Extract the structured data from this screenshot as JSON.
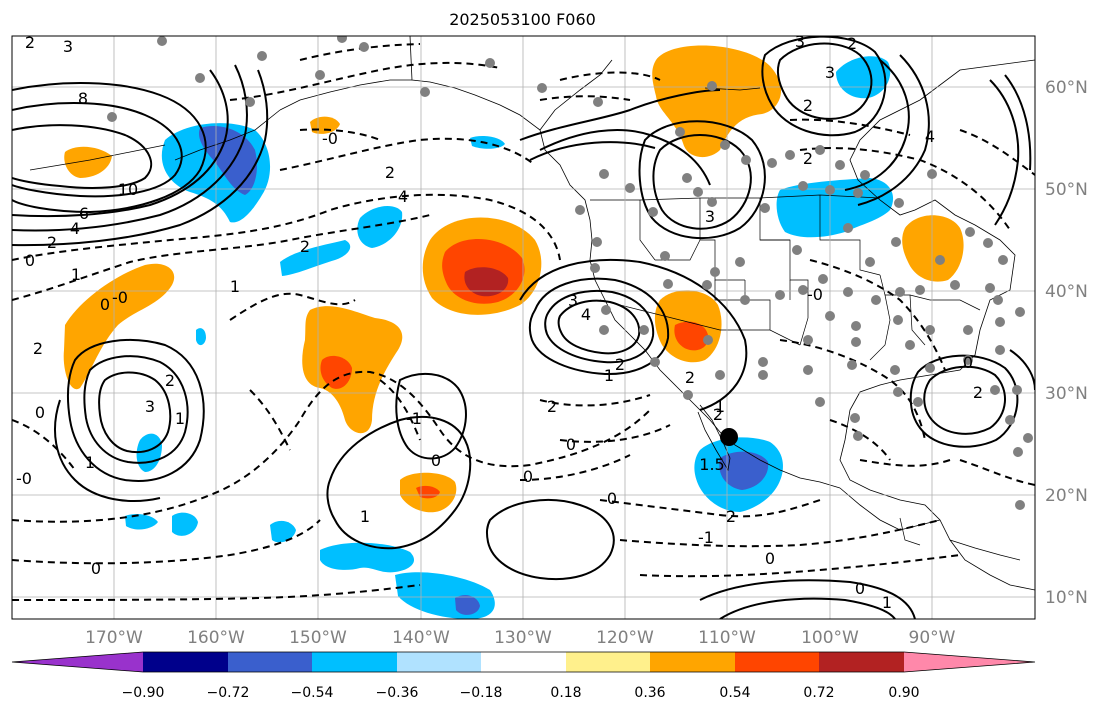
{
  "title": "2025053100 F060",
  "map": {
    "lon_labels": [
      "170°W",
      "160°W",
      "150°W",
      "140°W",
      "130°W",
      "120°W",
      "110°W",
      "100°W",
      "90°W"
    ],
    "lat_labels": [
      "60°N",
      "50°N",
      "40°N",
      "30°N",
      "20°N",
      "10°N"
    ],
    "label_color": "#808080",
    "grid": true,
    "contour_labels": [
      "2",
      "3",
      "8",
      "10",
      "6",
      "4",
      "2",
      "0",
      "1",
      "-0",
      "0",
      "0",
      "2",
      "4",
      "2",
      "2",
      "1",
      "-0",
      "3",
      "2",
      "1",
      "-0",
      "1",
      "0",
      "1",
      "0",
      "0",
      "-1",
      "3",
      "2",
      "1",
      "2",
      "4",
      "2",
      "0",
      "3",
      "1",
      "2",
      "1.5",
      "2",
      "-1",
      "0",
      "0",
      "1",
      "0",
      "2",
      "3",
      "2",
      "4",
      "-0",
      "0",
      "2",
      "2",
      "3"
    ],
    "station_marker_color": "#808080",
    "storm_marker_color": "#000000"
  },
  "colorbar": {
    "colors": [
      "#9932cc",
      "#00008b",
      "#3a5fcd",
      "#00bfff",
      "#b0e2ff",
      "#ffffff",
      "#fff08c",
      "#ffa500",
      "#ff4500",
      "#b22222",
      "#ff88aa"
    ],
    "tick_labels": [
      "−0.90",
      "−0.72",
      "−0.54",
      "−0.36",
      "−0.18",
      "0.18",
      "0.36",
      "0.54",
      "0.72",
      "0.90"
    ],
    "extend": "both"
  }
}
